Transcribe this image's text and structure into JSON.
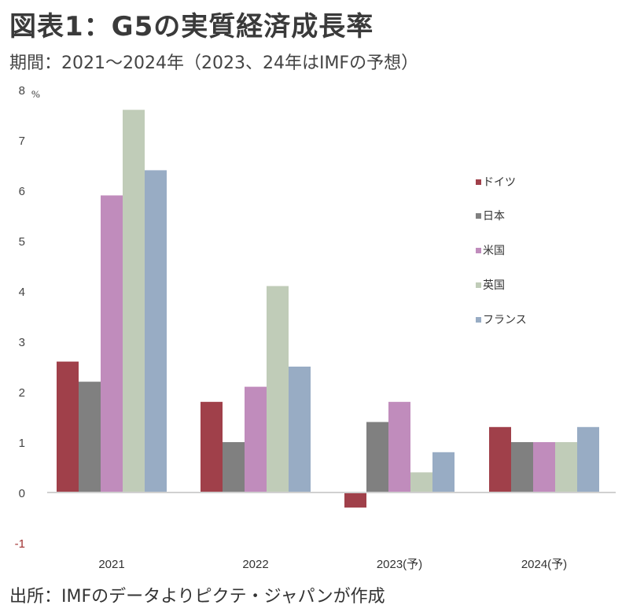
{
  "header": {
    "title": "図表1：G5の実質経済成長率",
    "subtitle": "期間：2021～2024年（2023、24年はIMFの予想）"
  },
  "footer": {
    "source": "出所：IMFのデータよりピクテ・ジャパンが作成"
  },
  "chart_data": {
    "type": "bar",
    "title": "図表1：G5の実質経済成長率",
    "xlabel": "",
    "ylabel": "%",
    "unit_label": "%",
    "ylim": [
      -1,
      8
    ],
    "yticks": [
      8,
      7,
      6,
      5,
      4,
      3,
      2,
      1,
      0,
      -1
    ],
    "grid": false,
    "legend_position": "right",
    "categories": [
      "2021",
      "2022",
      "2023(予)",
      "2024(予)"
    ],
    "series": [
      {
        "name": "ドイツ",
        "color": "#A0404A",
        "values": [
          2.6,
          1.8,
          -0.3,
          1.3
        ]
      },
      {
        "name": "日本",
        "color": "#808080",
        "values": [
          2.2,
          1.0,
          1.4,
          1.0
        ]
      },
      {
        "name": "米国",
        "color": "#C08CBC",
        "values": [
          5.9,
          2.1,
          1.8,
          1.0
        ]
      },
      {
        "name": "英国",
        "color": "#C0CCB8",
        "values": [
          7.6,
          4.1,
          0.4,
          1.0
        ]
      },
      {
        "name": "フランス",
        "color": "#98ACC4",
        "values": [
          6.4,
          2.5,
          0.8,
          1.3
        ]
      }
    ]
  }
}
